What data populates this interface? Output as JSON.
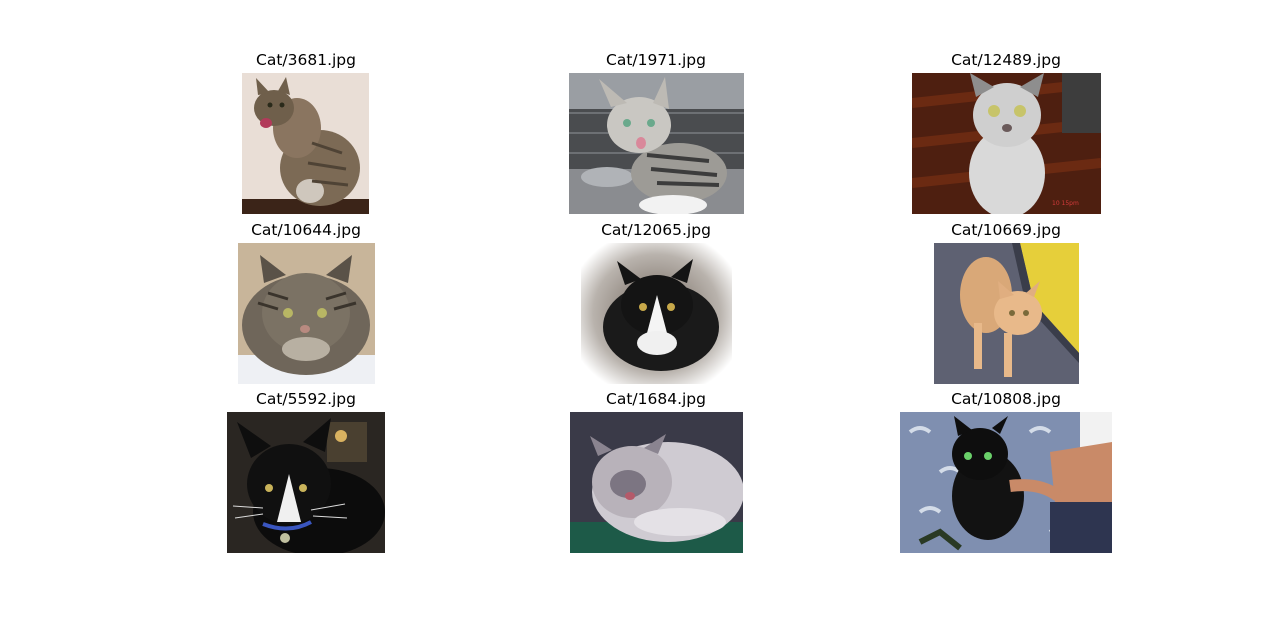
{
  "figure": {
    "images": [
      {
        "title": "Cat/3681.jpg",
        "subject": "tabby-cat-licking-nose",
        "colors": {
          "bg": "#e9ded6",
          "fur": "#7c6a55",
          "floor": "#3b2418"
        }
      },
      {
        "title": "Cat/1971.jpg",
        "subject": "grey-white-kitten-in-cage",
        "colors": {
          "bg": "#4a4c4f",
          "fur": "#c9c7c2",
          "floor": "#8a8c90"
        }
      },
      {
        "title": "Cat/12489.jpg",
        "subject": "white-grey-cat-on-wood-floor",
        "colors": {
          "bg": "#4e1f10",
          "fur": "#d9d9d9",
          "floor": "#6b2a12"
        }
      },
      {
        "title": "Cat/10644.jpg",
        "subject": "long-hair-tabby-portrait",
        "colors": {
          "bg": "#c8b59a",
          "fur": "#6f665a",
          "floor": "#eef0f4"
        }
      },
      {
        "title": "Cat/12065.jpg",
        "subject": "tuxedo-cat-vignette",
        "colors": {
          "bg": "#ffffff",
          "fur": "#1a1a1a",
          "floor": "#6e6258"
        }
      },
      {
        "title": "Cat/10669.jpg",
        "subject": "orange-cat-on-carpet",
        "colors": {
          "bg": "#5e6172",
          "fur": "#e8b98a",
          "floor": "#e6cf3a"
        }
      },
      {
        "title": "Cat/5592.jpg",
        "subject": "black-white-cat-with-collar",
        "colors": {
          "bg": "#2a2622",
          "fur": "#0c0c0c",
          "floor": "#f0f0f0"
        }
      },
      {
        "title": "Cat/1684.jpg",
        "subject": "fluffy-himalayan-cat",
        "colors": {
          "bg": "#3a3a48",
          "fur": "#cfcbd2",
          "floor": "#1d5a48"
        }
      },
      {
        "title": "Cat/10808.jpg",
        "subject": "black-cat-held-on-bed",
        "colors": {
          "bg": "#7f8fb0",
          "fur": "#121212",
          "floor": "#c98a68"
        }
      }
    ]
  }
}
